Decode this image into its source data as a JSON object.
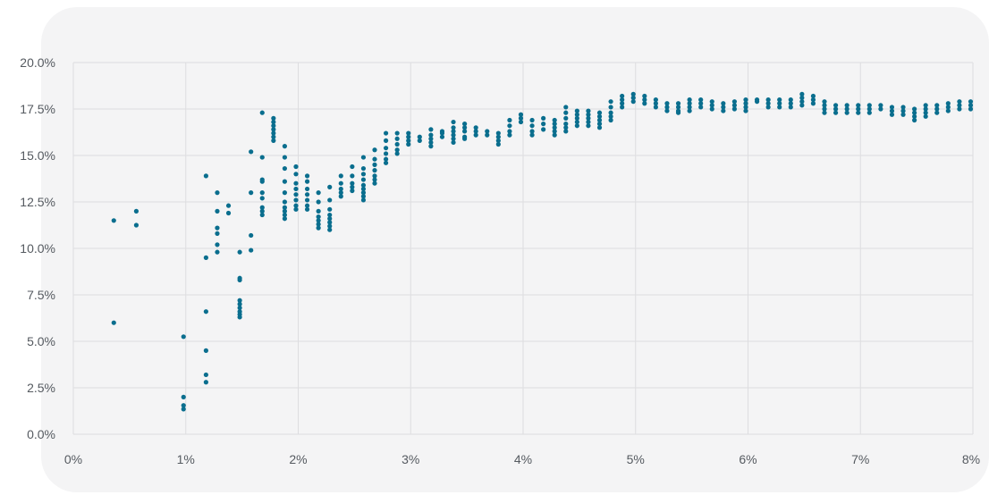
{
  "colors": {
    "background": "#ffffff",
    "card": "#f4f4f5",
    "grid": "#dddde0",
    "tick_text": "#555a60",
    "point": "#0a6e8e"
  },
  "chart_data": {
    "type": "scatter",
    "title": "",
    "xlabel": "",
    "ylabel": "",
    "xlim": [
      0,
      8
    ],
    "ylim": [
      0,
      20
    ],
    "grid": true,
    "legend": "none",
    "x_ticks": [
      0,
      1,
      2,
      3,
      4,
      5,
      6,
      7,
      8
    ],
    "x_tick_labels": [
      "0%",
      "1%",
      "2%",
      "3%",
      "4%",
      "5%",
      "6%",
      "7%",
      "8%"
    ],
    "y_ticks": [
      0,
      2.5,
      5,
      7.5,
      10,
      12.5,
      15,
      17.5,
      20
    ],
    "y_tick_labels": [
      "0.0%",
      "2.5%",
      "5.0%",
      "7.5%",
      "10.0%",
      "12.5%",
      "15.0%",
      "17.5%",
      "20.0%"
    ],
    "series": [
      {
        "color": "#0a6e8e",
        "clusters": [
          [
            0.36,
            [
              11.5,
              6.0
            ]
          ],
          [
            0.56,
            [
              12.0,
              11.25
            ]
          ],
          [
            0.98,
            [
              5.25,
              2.0,
              1.55,
              1.35
            ]
          ],
          [
            1.18,
            [
              13.9,
              9.5,
              6.6,
              4.5,
              3.2,
              2.8
            ]
          ],
          [
            1.28,
            [
              13.0,
              12.0,
              11.1,
              10.8,
              10.2,
              9.8
            ]
          ],
          [
            1.38,
            [
              12.3,
              11.9
            ]
          ],
          [
            1.48,
            [
              9.8,
              8.4,
              8.3,
              7.2,
              7.0,
              6.8,
              6.6,
              6.45,
              6.3
            ]
          ],
          [
            1.58,
            [
              15.2,
              13.0,
              10.7,
              9.9
            ]
          ],
          [
            1.68,
            [
              17.3,
              14.9,
              13.7,
              13.6,
              13.0,
              12.7,
              12.2,
              12.0,
              11.8
            ]
          ],
          [
            1.78,
            [
              17.0,
              16.8,
              16.6,
              16.4,
              16.2,
              16.0,
              15.8
            ]
          ],
          [
            1.88,
            [
              15.5,
              14.9,
              14.3,
              13.6,
              13.0,
              12.5,
              12.2,
              12.0,
              11.8,
              11.6
            ]
          ],
          [
            1.98,
            [
              14.4,
              14.0,
              13.5,
              13.2,
              12.9,
              12.6,
              12.3,
              12.1
            ]
          ],
          [
            2.08,
            [
              13.9,
              13.6,
              13.2,
              12.9,
              12.6,
              12.3,
              12.1
            ]
          ],
          [
            2.18,
            [
              13.0,
              12.5,
              12.0,
              11.7,
              11.5,
              11.3,
              11.1
            ]
          ],
          [
            2.28,
            [
              13.3,
              12.6,
              12.1,
              11.8,
              11.6,
              11.4,
              11.2,
              11.0
            ]
          ],
          [
            2.38,
            [
              13.9,
              13.5,
              13.2,
              13.0,
              12.8
            ]
          ],
          [
            2.48,
            [
              14.4,
              13.9,
              13.5,
              13.3,
              13.1
            ]
          ],
          [
            2.58,
            [
              14.9,
              14.3,
              14.0,
              13.7,
              13.4,
              13.2,
              13.0,
              12.8,
              12.6
            ]
          ],
          [
            2.68,
            [
              15.3,
              14.8,
              14.5,
              14.2,
              13.9,
              13.7,
              13.5
            ]
          ],
          [
            2.78,
            [
              16.2,
              15.8,
              15.4,
              15.1,
              14.8,
              14.6
            ]
          ],
          [
            2.88,
            [
              16.2,
              15.9,
              15.6,
              15.3,
              15.1
            ]
          ],
          [
            2.98,
            [
              16.2,
              16.0,
              15.8,
              15.6
            ]
          ],
          [
            3.08,
            [
              16.0,
              15.8
            ]
          ],
          [
            3.18,
            [
              16.4,
              16.1,
              15.9,
              15.7,
              15.5
            ]
          ],
          [
            3.28,
            [
              16.3,
              16.2,
              16.0
            ]
          ],
          [
            3.38,
            [
              16.8,
              16.5,
              16.3,
              16.1,
              15.9,
              15.7
            ]
          ],
          [
            3.48,
            [
              16.7,
              16.5,
              16.3,
              16.0,
              15.9
            ]
          ],
          [
            3.58,
            [
              16.5,
              16.3,
              16.1
            ]
          ],
          [
            3.68,
            [
              16.3,
              16.1
            ]
          ],
          [
            3.78,
            [
              16.2,
              16.0,
              15.8,
              15.6
            ]
          ],
          [
            3.88,
            [
              16.9,
              16.6,
              16.3,
              16.1
            ]
          ],
          [
            3.98,
            [
              17.2,
              17.0,
              16.8
            ]
          ],
          [
            4.08,
            [
              16.9,
              16.6,
              16.3,
              16.1
            ]
          ],
          [
            4.18,
            [
              17.0,
              16.7,
              16.4
            ]
          ],
          [
            4.28,
            [
              16.9,
              16.7,
              16.5,
              16.3,
              16.1
            ]
          ],
          [
            4.38,
            [
              17.6,
              17.3,
              17.0,
              16.7,
              16.5,
              16.3
            ]
          ],
          [
            4.48,
            [
              17.4,
              17.2,
              17.0,
              16.8,
              16.6
            ]
          ],
          [
            4.58,
            [
              17.4,
              17.2,
              17.0,
              16.8,
              16.6
            ]
          ],
          [
            4.68,
            [
              17.3,
              17.1,
              16.9,
              16.7,
              16.5
            ]
          ],
          [
            4.78,
            [
              17.9,
              17.6,
              17.3,
              17.1,
              16.9
            ]
          ],
          [
            4.88,
            [
              18.2,
              18.0,
              17.8,
              17.6
            ]
          ],
          [
            4.98,
            [
              18.3,
              18.1,
              17.9
            ]
          ],
          [
            5.08,
            [
              18.2,
              18.0,
              17.8
            ]
          ],
          [
            5.18,
            [
              18.0,
              17.8,
              17.6
            ]
          ],
          [
            5.28,
            [
              17.8,
              17.6,
              17.4
            ]
          ],
          [
            5.38,
            [
              17.8,
              17.6,
              17.4,
              17.3
            ]
          ],
          [
            5.48,
            [
              18.0,
              17.8,
              17.6,
              17.4
            ]
          ],
          [
            5.58,
            [
              18.0,
              17.8,
              17.6
            ]
          ],
          [
            5.68,
            [
              17.9,
              17.7,
              17.5
            ]
          ],
          [
            5.78,
            [
              17.8,
              17.6,
              17.4
            ]
          ],
          [
            5.88,
            [
              17.9,
              17.7,
              17.5
            ]
          ],
          [
            5.98,
            [
              18.0,
              17.8,
              17.6,
              17.4
            ]
          ],
          [
            6.08,
            [
              18.0,
              17.9
            ]
          ],
          [
            6.18,
            [
              18.0,
              17.8,
              17.6
            ]
          ],
          [
            6.28,
            [
              18.0,
              17.8,
              17.6
            ]
          ],
          [
            6.38,
            [
              18.0,
              17.8,
              17.6
            ]
          ],
          [
            6.48,
            [
              18.3,
              18.1,
              17.9,
              17.7
            ]
          ],
          [
            6.58,
            [
              18.2,
              18.0,
              17.8
            ]
          ],
          [
            6.68,
            [
              17.9,
              17.7,
              17.5,
              17.3
            ]
          ],
          [
            6.78,
            [
              17.7,
              17.5,
              17.3
            ]
          ],
          [
            6.88,
            [
              17.7,
              17.5,
              17.3
            ]
          ],
          [
            6.98,
            [
              17.7,
              17.5,
              17.3
            ]
          ],
          [
            7.08,
            [
              17.7,
              17.5,
              17.3
            ]
          ],
          [
            7.18,
            [
              17.7,
              17.5
            ]
          ],
          [
            7.28,
            [
              17.6,
              17.4,
              17.2
            ]
          ],
          [
            7.38,
            [
              17.6,
              17.4,
              17.2
            ]
          ],
          [
            7.48,
            [
              17.5,
              17.3,
              17.1,
              16.9
            ]
          ],
          [
            7.58,
            [
              17.7,
              17.5,
              17.3,
              17.1
            ]
          ],
          [
            7.68,
            [
              17.7,
              17.5,
              17.3
            ]
          ],
          [
            7.78,
            [
              17.8,
              17.6,
              17.4
            ]
          ],
          [
            7.88,
            [
              17.9,
              17.7,
              17.5
            ]
          ],
          [
            7.98,
            [
              17.9,
              17.7,
              17.5
            ]
          ]
        ]
      }
    ]
  }
}
